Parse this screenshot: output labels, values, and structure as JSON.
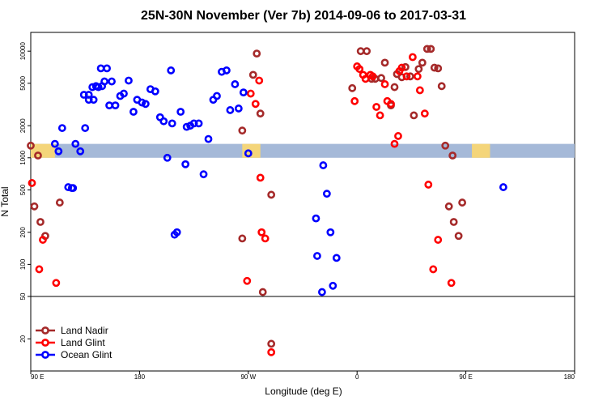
{
  "chart_data": {
    "type": "scatter",
    "title": "25N-30N November (Ver 7b)   2014-09-06 to 2017-03-31",
    "xlabel": "Longitude (deg E)",
    "ylabel": "N Total",
    "y_scale": "log",
    "ylim": [
      10,
      15000
    ],
    "x_axis_range": [
      "90 E",
      "180 E"
    ],
    "x_ticks": [
      "90 E",
      "180",
      "90 W",
      "0",
      "90 E",
      "180"
    ],
    "y_ticks": [
      "20",
      "50",
      "100",
      "200",
      "500",
      "1000",
      "2000",
      "5000",
      "10000"
    ],
    "legend_position": "bottom-left",
    "series": [
      {
        "name": "Land Nadir",
        "color": "#a52a2a",
        "points": [
          [
            "90 E",
            1300
          ],
          [
            "93 E",
            350
          ],
          [
            "96 E",
            1050
          ],
          [
            "98 E",
            250
          ],
          [
            "102 E",
            185
          ],
          [
            "114 E",
            380
          ],
          [
            "95 W",
            175
          ],
          [
            "95 W",
            1800
          ],
          [
            "86 W",
            6000
          ],
          [
            "83 W",
            9500
          ],
          [
            "80 W",
            2600
          ],
          [
            "71 W",
            18
          ],
          [
            "71 W",
            450
          ],
          [
            "78 W",
            55
          ],
          [
            "4 W",
            4500
          ],
          [
            "3 E",
            10000
          ],
          [
            "8 E",
            10000
          ],
          [
            "12 E",
            5500
          ],
          [
            "15 E",
            5500
          ],
          [
            "20 E",
            5600
          ],
          [
            "23 E",
            7800
          ],
          [
            "28 E",
            3100
          ],
          [
            "31 E",
            4600
          ],
          [
            "33 E",
            6100
          ],
          [
            "37 E",
            5700
          ],
          [
            "40 E",
            7100
          ],
          [
            "44 E",
            5800
          ],
          [
            "47 E",
            2500
          ],
          [
            "51 E",
            6800
          ],
          [
            "54 E",
            7800
          ],
          [
            "58 E",
            10500
          ],
          [
            "61 E",
            10500
          ],
          [
            "64 E",
            7000
          ],
          [
            "67 E",
            6900
          ],
          [
            "70 E",
            4700
          ],
          [
            "73 E",
            1300
          ],
          [
            "76 E",
            350
          ],
          [
            "79 E",
            1050
          ],
          [
            "80 E",
            250
          ],
          [
            "84 E",
            185
          ],
          [
            "87 E",
            380
          ]
        ]
      },
      {
        "name": "Land Glint",
        "color": "#ff0000",
        "points": [
          [
            "91 E",
            580
          ],
          [
            "97 E",
            90
          ],
          [
            "100 E",
            170
          ],
          [
            "111 E",
            67
          ],
          [
            "91 W",
            70
          ],
          [
            "88 W",
            4000
          ],
          [
            "84 W",
            3200
          ],
          [
            "81 W",
            5300
          ],
          [
            "80 W",
            650
          ],
          [
            "79 W",
            200
          ],
          [
            "76 W",
            175
          ],
          [
            "71 W",
            15
          ],
          [
            "2 W",
            3400
          ],
          [
            "0",
            7200
          ],
          [
            "2 E",
            6800
          ],
          [
            "5 E",
            6000
          ],
          [
            "7 E",
            5500
          ],
          [
            "11 E",
            6000
          ],
          [
            "13 E",
            5800
          ],
          [
            "16 E",
            3000
          ],
          [
            "19 E",
            2500
          ],
          [
            "23 E",
            4900
          ],
          [
            "25 E",
            3400
          ],
          [
            "28 E",
            3200
          ],
          [
            "31 E",
            1350
          ],
          [
            "34 E",
            1600
          ],
          [
            "35 E",
            6500
          ],
          [
            "37 E",
            7000
          ],
          [
            "41 E",
            5800
          ],
          [
            "46 E",
            8800
          ],
          [
            "50 E",
            5800
          ],
          [
            "52 E",
            4300
          ],
          [
            "56 E",
            2600
          ],
          [
            "59 E",
            560
          ],
          [
            "63 E",
            90
          ],
          [
            "67 E",
            170
          ],
          [
            "78 E",
            67
          ]
        ]
      },
      {
        "name": "Ocean Glint",
        "color": "#0000ff",
        "points": [
          [
            "121 E",
            530
          ],
          [
            "124 E",
            520
          ],
          [
            "127 E",
            1350
          ],
          [
            "131 E",
            1150
          ],
          [
            "135 E",
            1900
          ],
          [
            "138 E",
            3900
          ],
          [
            "142 E",
            3500
          ],
          [
            "146 E",
            4600
          ],
          [
            "149 E",
            4700
          ],
          [
            "153 E",
            6900
          ],
          [
            "157 E",
            5200
          ],
          [
            "160 E",
            3100
          ],
          [
            "164 E",
            3800
          ],
          [
            "167 E",
            4000
          ],
          [
            "171 E",
            5300
          ],
          [
            "175 E",
            2700
          ],
          [
            "178 E",
            3500
          ],
          [
            "178 W",
            3300
          ],
          [
            "175 W",
            3200
          ],
          [
            "171 W",
            4400
          ],
          [
            "167 W",
            4200
          ],
          [
            "163 W",
            2400
          ],
          [
            "160 W",
            2200
          ],
          [
            "157 W",
            1000
          ],
          [
            "154 W",
            6600
          ],
          [
            "153 W",
            2100
          ],
          [
            "151 W",
            190
          ],
          [
            "149 W",
            200
          ],
          [
            "146 W",
            2700
          ],
          [
            "142 W",
            870
          ],
          [
            "141 W",
            1950
          ],
          [
            "138 W",
            2000
          ],
          [
            "135 W",
            2100
          ],
          [
            "131 W",
            2100
          ],
          [
            "127 W",
            700
          ],
          [
            "123 W",
            1500
          ],
          [
            "119 W",
            3500
          ],
          [
            "116 W",
            3800
          ],
          [
            "112 W",
            6400
          ],
          [
            "108 W",
            6600
          ],
          [
            "105 W",
            2800
          ],
          [
            "101 W",
            4900
          ],
          [
            "98 W",
            2900
          ],
          [
            "94 W",
            4100
          ],
          [
            "90 W",
            1100
          ],
          [
            "34 W",
            270
          ],
          [
            "33 W",
            120
          ],
          [
            "29 W",
            55
          ],
          [
            "28 W",
            850
          ],
          [
            "25 W",
            460
          ],
          [
            "22 W",
            200
          ],
          [
            "20 W",
            63
          ],
          [
            "17 W",
            115
          ],
          [
            "110 E",
            1350
          ],
          [
            "113 E",
            1150
          ],
          [
            "116 E",
            1900
          ],
          [
            "121 E",
            530
          ],
          [
            "125 E",
            520
          ],
          [
            "134 E",
            3900
          ],
          [
            "138 E",
            3500
          ],
          [
            "141 E",
            4600
          ],
          [
            "144 E",
            4700
          ],
          [
            "148 E",
            6900
          ],
          [
            "151 E",
            5200
          ],
          [
            "155 E",
            3100
          ]
        ]
      }
    ],
    "reference_line": 50,
    "band": {
      "low": 1000,
      "high": 1350,
      "land_color": "#f4d57a",
      "ocean_color": "#a5b9d8"
    }
  }
}
